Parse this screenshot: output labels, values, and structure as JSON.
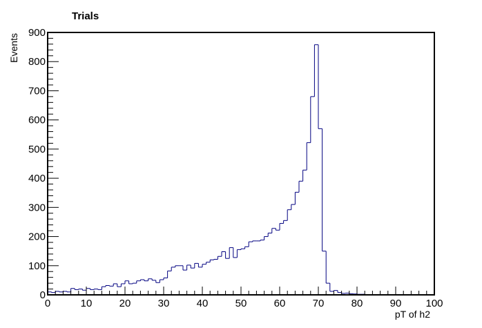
{
  "chart_data": {
    "type": "bar",
    "style": "step-histogram",
    "title": "Trials",
    "xlabel": "pT of h2",
    "ylabel": "Events",
    "xlim": [
      0,
      100
    ],
    "ylim": [
      0,
      900
    ],
    "grid": false,
    "line_color": "#000080",
    "bin_width": 1,
    "x_major_ticks": [
      0,
      10,
      20,
      30,
      40,
      50,
      60,
      70,
      80,
      90,
      100
    ],
    "y_major_ticks": [
      0,
      100,
      200,
      300,
      400,
      500,
      600,
      700,
      800,
      900
    ],
    "bin_edges_start": 0,
    "values": [
      10,
      8,
      12,
      10,
      12,
      10,
      22,
      18,
      20,
      16,
      22,
      18,
      20,
      18,
      28,
      32,
      30,
      38,
      28,
      38,
      48,
      38,
      40,
      48,
      52,
      48,
      55,
      50,
      42,
      52,
      58,
      82,
      95,
      100,
      100,
      85,
      102,
      92,
      108,
      95,
      105,
      112,
      120,
      122,
      132,
      148,
      125,
      162,
      128,
      155,
      158,
      165,
      182,
      185,
      185,
      188,
      200,
      212,
      228,
      222,
      245,
      255,
      292,
      310,
      352,
      390,
      428,
      522,
      680,
      858,
      570,
      150,
      40,
      12,
      15,
      8,
      5,
      6,
      4,
      3,
      2,
      2,
      1,
      1,
      1,
      1,
      0,
      1,
      0,
      1,
      0,
      0,
      0,
      0,
      0,
      0,
      0,
      0,
      0,
      0
    ]
  }
}
